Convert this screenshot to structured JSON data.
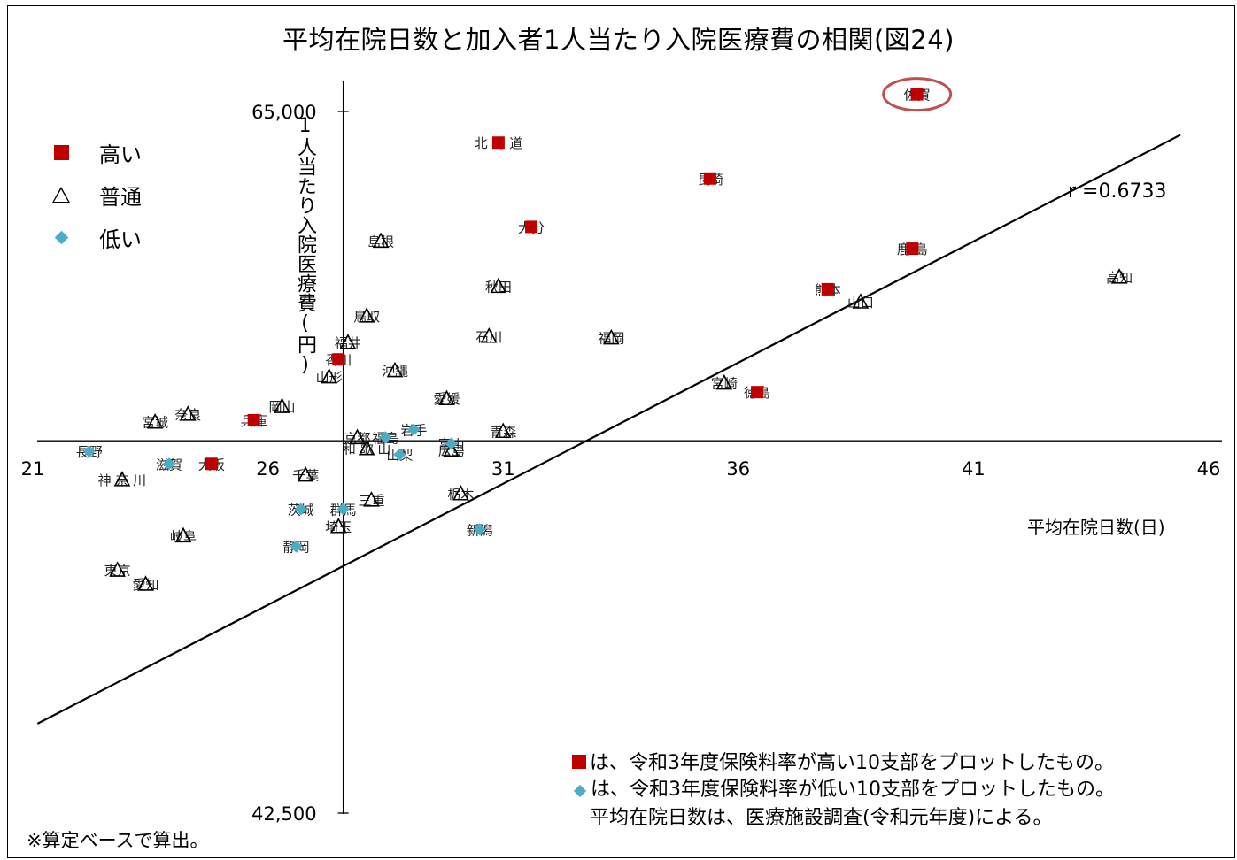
{
  "title": "平均在院日数と加入者1人当たり入院医療費の相関(図24)",
  "legend": [
    {
      "symbol": "square",
      "label": "高い",
      "color": "#c00000"
    },
    {
      "symbol": "triangle",
      "label": "普通",
      "color": "#000000"
    },
    {
      "symbol": "diamond",
      "label": "低い",
      "color": "#4bacc6"
    }
  ],
  "r_label": "r =0.6733",
  "notes": {
    "line1": "は、令和3年度保険料率が高い10支部をプロットしたもの。",
    "line2": "は、令和3年度保険料率が低い10支部をプロットしたもの。",
    "line3": "平均在院日数は、医療施設調査(令和元年度)による。"
  },
  "footnote": "※算定ベースで算出。",
  "chart_data": {
    "type": "scatter",
    "title": "平均在院日数と加入者1人当たり入院医療費の相関(図24)",
    "xlabel": "平均在院日数(日)",
    "ylabel": "1人当たり入院医療費(円)",
    "xlim": [
      21,
      46
    ],
    "ylim": [
      42500,
      65000
    ],
    "x_ticks": [
      "21",
      "26",
      "31",
      "36",
      "41",
      "46"
    ],
    "y_ticks": [
      "42,500",
      "65,000"
    ],
    "x_axis_crossing_y": 54440,
    "y_axis_crossing_x": 27.6,
    "trendline": {
      "x": [
        21.1,
        45.4
      ],
      "y": [
        45370,
        64250
      ]
    },
    "highlight_circle": "佐賀",
    "points": [
      {
        "name": "佐賀",
        "x": 39.8,
        "y": 65550,
        "group": "high"
      },
      {
        "name": "北 海 道",
        "x": 30.9,
        "y": 64000,
        "group": "high"
      },
      {
        "name": "長崎",
        "x": 35.4,
        "y": 62850,
        "group": "high"
      },
      {
        "name": "大分",
        "x": 31.6,
        "y": 61300,
        "group": "high"
      },
      {
        "name": "鹿 島",
        "x": 39.7,
        "y": 60600,
        "group": "high"
      },
      {
        "name": "熊本",
        "x": 37.9,
        "y": 59300,
        "group": "high"
      },
      {
        "name": "徳島",
        "x": 36.4,
        "y": 56000,
        "group": "high"
      },
      {
        "name": "香川",
        "x": 27.5,
        "y": 57050,
        "group": "high"
      },
      {
        "name": "兵庫",
        "x": 25.7,
        "y": 55100,
        "group": "high"
      },
      {
        "name": "大阪",
        "x": 24.8,
        "y": 53700,
        "group": "high"
      },
      {
        "name": "島根",
        "x": 28.4,
        "y": 60850,
        "group": "normal"
      },
      {
        "name": "秋田",
        "x": 30.9,
        "y": 59400,
        "group": "normal"
      },
      {
        "name": "鳥取",
        "x": 28.1,
        "y": 58450,
        "group": "normal"
      },
      {
        "name": "石川",
        "x": 30.7,
        "y": 57800,
        "group": "normal"
      },
      {
        "name": "福岡",
        "x": 33.3,
        "y": 57750,
        "group": "normal"
      },
      {
        "name": "福井",
        "x": 27.7,
        "y": 57600,
        "group": "normal"
      },
      {
        "name": "沖縄",
        "x": 28.7,
        "y": 56700,
        "group": "normal"
      },
      {
        "name": "山形",
        "x": 27.3,
        "y": 56500,
        "group": "normal"
      },
      {
        "name": "宮崎",
        "x": 35.7,
        "y": 56300,
        "group": "normal"
      },
      {
        "name": "愛媛",
        "x": 29.8,
        "y": 55800,
        "group": "normal"
      },
      {
        "name": "岡山",
        "x": 26.3,
        "y": 55550,
        "group": "normal"
      },
      {
        "name": "奈良",
        "x": 24.3,
        "y": 55300,
        "group": "normal"
      },
      {
        "name": "宮城",
        "x": 23.6,
        "y": 55050,
        "group": "normal"
      },
      {
        "name": "青森",
        "x": 31.0,
        "y": 54750,
        "group": "normal"
      },
      {
        "name": "京都",
        "x": 27.9,
        "y": 54550,
        "group": "normal"
      },
      {
        "name": "和 歌 山",
        "x": 28.1,
        "y": 54200,
        "group": "normal"
      },
      {
        "name": "広島",
        "x": 29.9,
        "y": 54150,
        "group": "normal"
      },
      {
        "name": "神 奈 川",
        "x": 22.9,
        "y": 53200,
        "group": "normal"
      },
      {
        "name": "千葉",
        "x": 26.8,
        "y": 53350,
        "group": "normal"
      },
      {
        "name": "三重",
        "x": 28.2,
        "y": 52550,
        "group": "normal"
      },
      {
        "name": "栃木",
        "x": 30.1,
        "y": 52750,
        "group": "normal"
      },
      {
        "name": "埼玉",
        "x": 27.5,
        "y": 51700,
        "group": "normal"
      },
      {
        "name": "岐阜",
        "x": 24.2,
        "y": 51400,
        "group": "normal"
      },
      {
        "name": "東京",
        "x": 22.8,
        "y": 50300,
        "group": "normal"
      },
      {
        "name": "山口",
        "x": 38.6,
        "y": 58900,
        "group": "normal"
      },
      {
        "name": "高知",
        "x": 44.1,
        "y": 59700,
        "group": "normal"
      },
      {
        "name": "愛知",
        "x": 23.4,
        "y": 49850,
        "group": "normal"
      },
      {
        "name": "岩手",
        "x": 29.1,
        "y": 54800,
        "group": "low"
      },
      {
        "name": "福島",
        "x": 28.5,
        "y": 54550,
        "group": "low"
      },
      {
        "name": "富山",
        "x": 29.9,
        "y": 54350,
        "group": "low"
      },
      {
        "name": "長野",
        "x": 22.2,
        "y": 54100,
        "group": "low"
      },
      {
        "name": "滋賀",
        "x": 23.9,
        "y": 53700,
        "group": "low"
      },
      {
        "name": "山梨",
        "x": 28.8,
        "y": 54000,
        "group": "low"
      },
      {
        "name": "茨城",
        "x": 26.7,
        "y": 52250,
        "group": "low"
      },
      {
        "name": "群馬",
        "x": 27.6,
        "y": 52250,
        "group": "low"
      },
      {
        "name": "新潟",
        "x": 30.5,
        "y": 51600,
        "group": "low"
      },
      {
        "name": "静岡",
        "x": 26.6,
        "y": 51050,
        "group": "low"
      }
    ]
  }
}
